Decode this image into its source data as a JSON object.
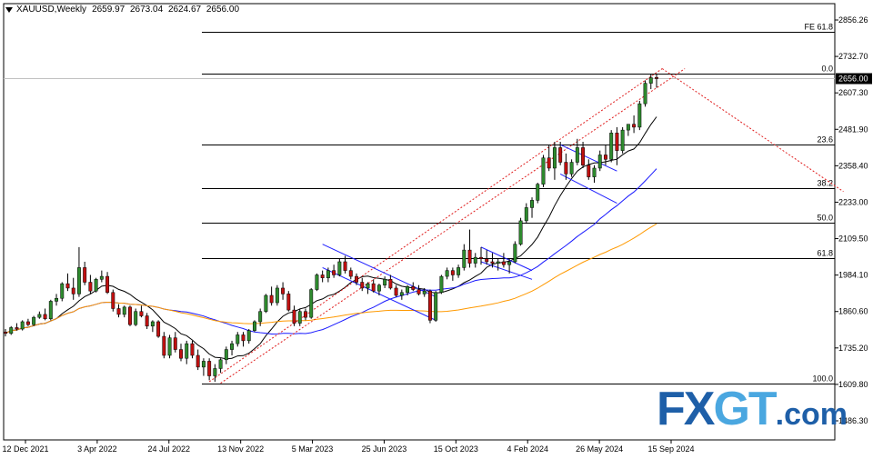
{
  "header": {
    "symbol": "XAUUSD,Weekly",
    "open": "2659.97",
    "high": "2673.04",
    "low": "2624.67",
    "close": "2656.00"
  },
  "watermark": {
    "brand_fx": "FX",
    "brand_gt": "GT",
    "brand_domain": ".com"
  },
  "chart_data": {
    "type": "candlestick",
    "timeframe": "Weekly",
    "ylim": [
      1486.3,
      2856.26
    ],
    "y_ticks": [
      "2856.26",
      "2732.70",
      "2607.30",
      "2481.90",
      "2358.40",
      "2233.00",
      "2109.50",
      "1984.10",
      "1860.60",
      "1735.20",
      "1609.80",
      "1486.30"
    ],
    "current_price": "2656.00",
    "x_ticks": [
      "12 Dec 2021",
      "3 Apr 2022",
      "24 Jul 2022",
      "13 Nov 2022",
      "5 Mar 2023",
      "25 Jun 2023",
      "15 Oct 2023",
      "4 Feb 2024",
      "26 May 2024",
      "15 Sep 2024"
    ],
    "fibonacci": [
      {
        "label": "FE 61.8",
        "price": 2815
      },
      {
        "label": "0.0",
        "price": 2673
      },
      {
        "label": "23.6",
        "price": 2431
      },
      {
        "label": "38.2",
        "price": 2282
      },
      {
        "label": "50.0",
        "price": 2162
      },
      {
        "label": "61.8",
        "price": 2041
      },
      {
        "label": "100.0",
        "price": 1615
      }
    ],
    "candles": [
      [
        1790,
        1800,
        1775,
        1785
      ],
      [
        1785,
        1810,
        1780,
        1805
      ],
      [
        1805,
        1820,
        1795,
        1800
      ],
      [
        1800,
        1830,
        1795,
        1825
      ],
      [
        1825,
        1835,
        1810,
        1815
      ],
      [
        1815,
        1845,
        1810,
        1840
      ],
      [
        1840,
        1860,
        1835,
        1850
      ],
      [
        1850,
        1870,
        1830,
        1835
      ],
      [
        1835,
        1900,
        1830,
        1895
      ],
      [
        1895,
        1920,
        1880,
        1905
      ],
      [
        1905,
        1960,
        1895,
        1955
      ],
      [
        1955,
        1990,
        1930,
        1940
      ],
      [
        1940,
        1975,
        1900,
        1920
      ],
      [
        1920,
        2080,
        1910,
        2010
      ],
      [
        2010,
        2030,
        1950,
        1960
      ],
      [
        1960,
        1985,
        1920,
        1930
      ],
      [
        1930,
        1975,
        1925,
        1970
      ],
      [
        1970,
        2000,
        1960,
        1980
      ],
      [
        1980,
        1995,
        1920,
        1925
      ],
      [
        1925,
        1935,
        1860,
        1870
      ],
      [
        1870,
        1885,
        1840,
        1850
      ],
      [
        1850,
        1880,
        1840,
        1875
      ],
      [
        1875,
        1880,
        1810,
        1815
      ],
      [
        1815,
        1870,
        1810,
        1860
      ],
      [
        1860,
        1880,
        1840,
        1845
      ],
      [
        1845,
        1855,
        1800,
        1810
      ],
      [
        1810,
        1830,
        1790,
        1825
      ],
      [
        1825,
        1830,
        1770,
        1775
      ],
      [
        1775,
        1790,
        1700,
        1710
      ],
      [
        1710,
        1780,
        1700,
        1770
      ],
      [
        1770,
        1790,
        1720,
        1730
      ],
      [
        1730,
        1750,
        1690,
        1700
      ],
      [
        1700,
        1760,
        1680,
        1750
      ],
      [
        1750,
        1760,
        1700,
        1710
      ],
      [
        1710,
        1730,
        1660,
        1670
      ],
      [
        1670,
        1700,
        1640,
        1690
      ],
      [
        1690,
        1700,
        1625,
        1640
      ],
      [
        1640,
        1680,
        1620,
        1665
      ],
      [
        1665,
        1700,
        1650,
        1695
      ],
      [
        1695,
        1740,
        1680,
        1730
      ],
      [
        1730,
        1760,
        1710,
        1750
      ],
      [
        1750,
        1790,
        1740,
        1780
      ],
      [
        1780,
        1790,
        1740,
        1760
      ],
      [
        1760,
        1800,
        1750,
        1795
      ],
      [
        1795,
        1830,
        1790,
        1825
      ],
      [
        1825,
        1870,
        1810,
        1860
      ],
      [
        1860,
        1920,
        1855,
        1915
      ],
      [
        1915,
        1945,
        1880,
        1890
      ],
      [
        1890,
        1950,
        1880,
        1940
      ],
      [
        1940,
        1960,
        1900,
        1920
      ],
      [
        1920,
        1930,
        1860,
        1865
      ],
      [
        1865,
        1880,
        1810,
        1820
      ],
      [
        1820,
        1870,
        1810,
        1860
      ],
      [
        1860,
        1870,
        1830,
        1840
      ],
      [
        1840,
        1940,
        1835,
        1935
      ],
      [
        1935,
        1990,
        1930,
        1985
      ],
      [
        1985,
        2000,
        1960,
        1975
      ],
      [
        1975,
        2010,
        1960,
        2000
      ],
      [
        2000,
        2020,
        1975,
        1985
      ],
      [
        1985,
        2040,
        1980,
        2030
      ],
      [
        2030,
        2050,
        1990,
        2000
      ],
      [
        2000,
        2010,
        1970,
        1980
      ],
      [
        1980,
        1990,
        1950,
        1960
      ],
      [
        1960,
        1975,
        1930,
        1940
      ],
      [
        1940,
        1960,
        1920,
        1955
      ],
      [
        1955,
        1970,
        1925,
        1930
      ],
      [
        1930,
        1955,
        1915,
        1950
      ],
      [
        1950,
        1980,
        1940,
        1970
      ],
      [
        1970,
        1985,
        1935,
        1940
      ],
      [
        1940,
        1950,
        1910,
        1915
      ],
      [
        1915,
        1935,
        1900,
        1925
      ],
      [
        1925,
        1950,
        1915,
        1945
      ],
      [
        1945,
        1960,
        1930,
        1935
      ],
      [
        1935,
        1950,
        1915,
        1920
      ],
      [
        1920,
        1940,
        1910,
        1930
      ],
      [
        1930,
        1935,
        1820,
        1830
      ],
      [
        1830,
        1930,
        1825,
        1925
      ],
      [
        1925,
        1985,
        1920,
        1980
      ],
      [
        1980,
        2010,
        1970,
        2000
      ],
      [
        2000,
        2010,
        1965,
        1985
      ],
      [
        1985,
        2020,
        1975,
        2010
      ],
      [
        2010,
        2090,
        2000,
        2070
      ],
      [
        2070,
        2140,
        2010,
        2025
      ],
      [
        2025,
        2060,
        2010,
        2045
      ],
      [
        2045,
        2080,
        2020,
        2040
      ],
      [
        2040,
        2070,
        2020,
        2030
      ],
      [
        2030,
        2060,
        2010,
        2025
      ],
      [
        2025,
        2040,
        2000,
        2030
      ],
      [
        2030,
        2060,
        2010,
        2020
      ],
      [
        2020,
        2040,
        1990,
        2030
      ],
      [
        2030,
        2100,
        2025,
        2090
      ],
      [
        2090,
        2180,
        2085,
        2170
      ],
      [
        2170,
        2230,
        2160,
        2215
      ],
      [
        2215,
        2250,
        2180,
        2240
      ],
      [
        2240,
        2300,
        2230,
        2295
      ],
      [
        2295,
        2395,
        2285,
        2385
      ],
      [
        2385,
        2430,
        2340,
        2350
      ],
      [
        2350,
        2440,
        2310,
        2420
      ],
      [
        2420,
        2440,
        2360,
        2370
      ],
      [
        2370,
        2400,
        2310,
        2330
      ],
      [
        2330,
        2380,
        2320,
        2370
      ],
      [
        2370,
        2450,
        2360,
        2420
      ],
      [
        2420,
        2440,
        2350,
        2360
      ],
      [
        2360,
        2380,
        2310,
        2320
      ],
      [
        2320,
        2360,
        2300,
        2350
      ],
      [
        2350,
        2410,
        2340,
        2395
      ],
      [
        2395,
        2430,
        2360,
        2380
      ],
      [
        2380,
        2480,
        2370,
        2470
      ],
      [
        2470,
        2490,
        2360,
        2410
      ],
      [
        2410,
        2490,
        2400,
        2480
      ],
      [
        2480,
        2500,
        2460,
        2500
      ],
      [
        2500,
        2530,
        2470,
        2490
      ],
      [
        2490,
        2580,
        2480,
        2570
      ],
      [
        2570,
        2650,
        2560,
        2640
      ],
      [
        2640,
        2673,
        2620,
        2659
      ],
      [
        2659.97,
        2673.04,
        2624.67,
        2656
      ]
    ],
    "moving_averages": [
      {
        "color": "#000000"
      },
      {
        "color": "#1a1aff"
      },
      {
        "color": "#ff9900"
      }
    ],
    "grid": false,
    "colors": {
      "bull": "#2e8b2e",
      "bear": "#c01010",
      "background": "#ffffff",
      "trend": "#e02020",
      "channel": "#2020ff"
    }
  }
}
